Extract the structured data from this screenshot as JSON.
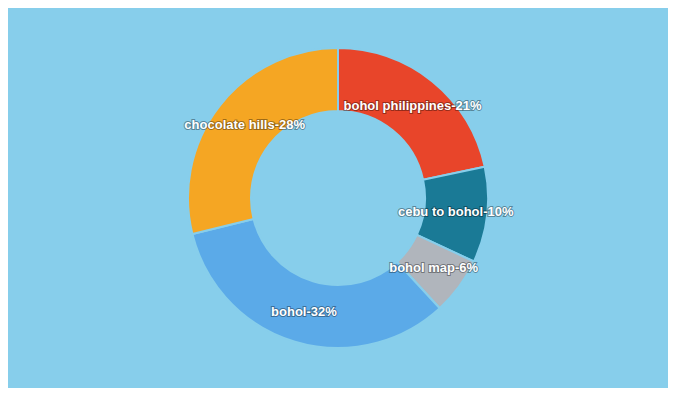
{
  "chart_data": {
    "type": "pie",
    "categories": [
      "bohol philippines",
      "cebu to bohol",
      "bohol map",
      "bohol",
      "chocolate hills"
    ],
    "values": [
      21,
      10,
      6,
      32,
      28
    ],
    "value_labels": [
      "bohol philippines-21%",
      "cebu to bohol-10%",
      "bohol map-6%",
      "bohol-32%",
      "chocolate hills-28%"
    ],
    "colors": [
      "#e8452a",
      "#1a7a96",
      "#b0b5bc",
      "#5baae8",
      "#f5a623"
    ],
    "data_labels": true
  }
}
